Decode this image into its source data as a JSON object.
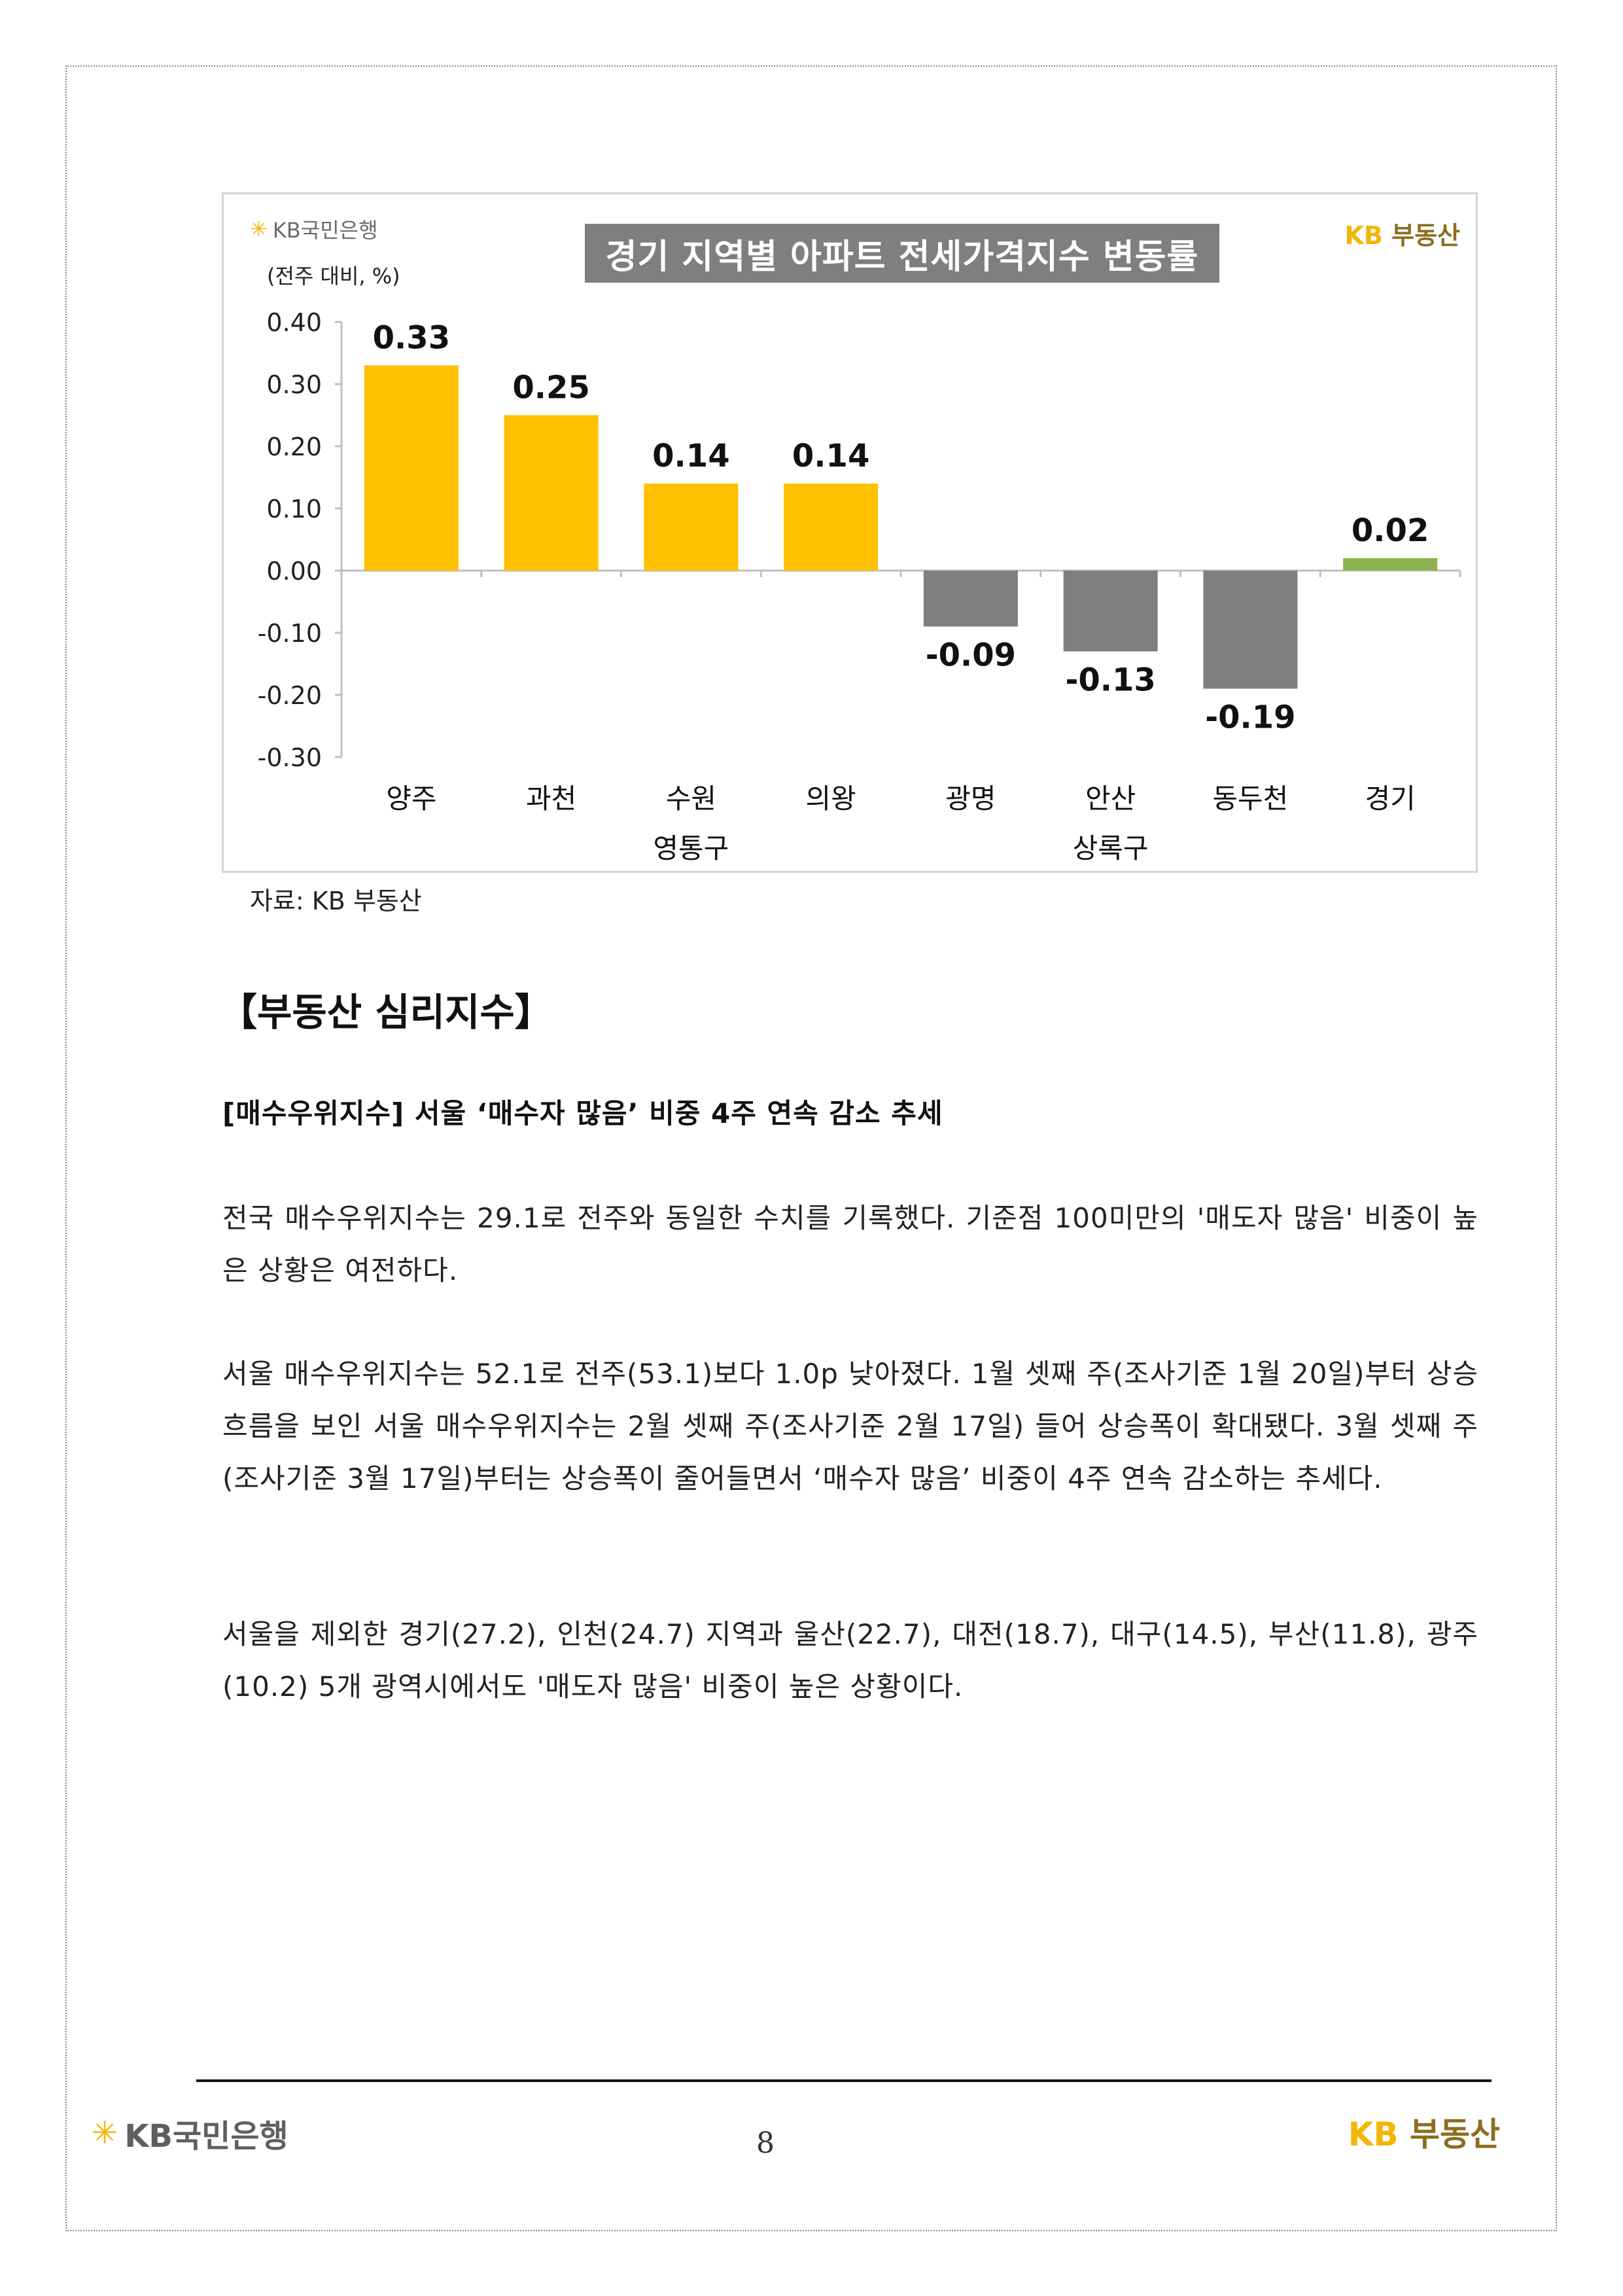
{
  "chart_header": {
    "bank_logo": "KB국민은행",
    "unit": "(전주 대비, %)",
    "brand": {
      "kb": "KB",
      "name": "부동산"
    }
  },
  "chart_data": {
    "type": "bar",
    "title": "경기 지역별 아파트 전세가격지수 변동률",
    "categories": [
      [
        "양주"
      ],
      [
        "과천"
      ],
      [
        "수원",
        "영통구"
      ],
      [
        "의왕"
      ],
      [
        "광명"
      ],
      [
        "안산",
        "상록구"
      ],
      [
        "동두천"
      ],
      [
        "경기"
      ]
    ],
    "values": [
      0.33,
      0.25,
      0.14,
      0.14,
      -0.09,
      -0.13,
      -0.19,
      0.02
    ],
    "value_labels": [
      "0.33",
      "0.25",
      "0.14",
      "0.14",
      "-0.09",
      "-0.13",
      "-0.19",
      "0.02"
    ],
    "y_ticks": [
      "0.40",
      "0.30",
      "0.20",
      "0.10",
      "0.00",
      "-0.10",
      "-0.20",
      "-0.30"
    ],
    "ylim": [
      -0.3,
      0.4
    ],
    "xlabel": "",
    "ylabel": "",
    "colors": {
      "positive": "#FFC000",
      "negative": "#7F7F7F",
      "total": "#8DB351"
    },
    "grid": false
  },
  "source_note": "자료: KB 부동산",
  "section_heading": "【부동산 심리지수】",
  "sub_heading": "[매수우위지수] 서울 ‘매수자 많음’ 비중 4주 연속 감소 추세",
  "paragraphs": [
    "전국 매수우위지수는 29.1로 전주와 동일한 수치를 기록했다. 기준점 100미만의 '매도자 많음' 비중이 높은 상황은 여전하다.",
    "서울 매수우위지수는 52.1로 전주(53.1)보다 1.0p 낮아졌다. 1월 셋째 주(조사기준 1월 20일)부터 상승 흐름을 보인 서울 매수우위지수는 2월 셋째 주(조사기준 2월 17일) 들어 상승폭이 확대됐다. 3월 셋째 주(조사기준 3월 17일)부터는 상승폭이 줄어들면서 ‘매수자 많음’ 비중이 4주 연속 감소하는 추세다.",
    "서울을 제외한 경기(27.2), 인천(24.7) 지역과 울산(22.7), 대전(18.7), 대구(14.5), 부산(11.8), 광주(10.2) 5개 광역시에서도 '매도자 많음' 비중이 높은 상황이다."
  ],
  "footer": {
    "bank_logo": "KB국민은행",
    "brand": {
      "kb": "KB",
      "name": "부동산"
    },
    "page_number": "8"
  }
}
